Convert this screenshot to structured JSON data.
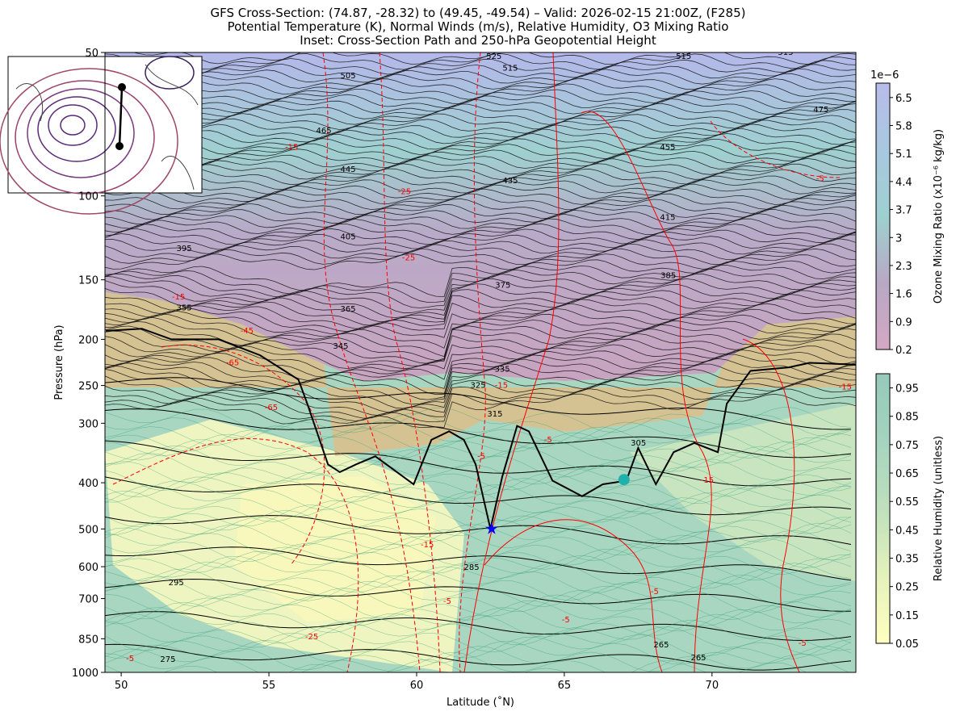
{
  "chart_data": {
    "type": "cross_section",
    "title_lines": [
      "GFS Cross-Section: (74.87, -28.32) to (49.45, -49.54) – Valid: 2026-02-15 21:00Z, (F285)",
      "Potential Temperature (K), Normal Winds (m/s), Relative Humidity, O3 Mixing Ratio",
      "Inset: Cross-Section Path and 250-hPa Geopotential Height"
    ],
    "x_label": "Latitude (˚N)",
    "y_label": "Pressure (hPa)",
    "xlim": [
      49.45,
      74.87
    ],
    "xticks": [
      50,
      55,
      60,
      65,
      70
    ],
    "ylim": [
      1000,
      50
    ],
    "ylog": true,
    "yticks": [
      50,
      100,
      150,
      200,
      250,
      300,
      400,
      500,
      600,
      700,
      850,
      1000
    ],
    "tropopause": {
      "color": "#000000",
      "x": [
        49.48,
        50.7,
        51.7,
        53.3,
        54.7,
        56.0,
        56.3,
        57.0,
        57.4,
        57.95,
        58.6,
        59.9,
        60.5,
        61.1,
        61.6,
        62.0,
        62.5,
        62.9,
        63.4,
        63.8,
        64.6,
        65.6,
        66.3,
        67.1,
        67.5,
        68.1,
        68.7,
        69.4,
        70.2,
        70.5,
        71.3,
        72.6,
        73.3,
        74.87
      ],
      "y": [
        192,
        190,
        200,
        200,
        216,
        243,
        273,
        366,
        380,
        366,
        352,
        403,
        325,
        312,
        325,
        366,
        500,
        388,
        304,
        312,
        396,
        427,
        403,
        396,
        338,
        403,
        345,
        330,
        345,
        273,
        233,
        229,
        224,
        226
      ]
    },
    "markers": [
      {
        "shape": "star",
        "color": "#0000ff",
        "x": 62.54,
        "y": 500
      },
      {
        "shape": "circle",
        "color": "#20b2aa",
        "x": 67.02,
        "y": 394
      }
    ],
    "theta_labels": [
      {
        "value": 525,
        "x": 62.62,
        "y": 51
      },
      {
        "value": 515,
        "x": 63.17,
        "y": 54
      },
      {
        "value": 515,
        "x": 69.04,
        "y": 51
      },
      {
        "value": 515,
        "x": 72.49,
        "y": 50
      },
      {
        "value": 505,
        "x": 57.68,
        "y": 56
      },
      {
        "value": 475,
        "x": 73.69,
        "y": 66
      },
      {
        "value": 465,
        "x": 56.86,
        "y": 73
      },
      {
        "value": 455,
        "x": 68.5,
        "y": 79
      },
      {
        "value": 445,
        "x": 57.68,
        "y": 88
      },
      {
        "value": 435,
        "x": 63.17,
        "y": 93
      },
      {
        "value": 415,
        "x": 68.5,
        "y": 111
      },
      {
        "value": 405,
        "x": 57.68,
        "y": 122
      },
      {
        "value": 395,
        "x": 52.13,
        "y": 129
      },
      {
        "value": 385,
        "x": 68.52,
        "y": 147
      },
      {
        "value": 375,
        "x": 62.92,
        "y": 154
      },
      {
        "value": 365,
        "x": 57.68,
        "y": 173
      },
      {
        "value": 355,
        "x": 52.13,
        "y": 172
      },
      {
        "value": 345,
        "x": 57.43,
        "y": 207
      },
      {
        "value": 335,
        "x": 62.9,
        "y": 231
      },
      {
        "value": 325,
        "x": 62.08,
        "y": 250
      },
      {
        "value": 315,
        "x": 62.65,
        "y": 287
      },
      {
        "value": 305,
        "x": 67.51,
        "y": 330
      },
      {
        "value": 285,
        "x": 61.86,
        "y": 602
      },
      {
        "value": 295,
        "x": 51.86,
        "y": 649
      },
      {
        "value": 275,
        "x": 51.58,
        "y": 940
      },
      {
        "value": 265,
        "x": 68.28,
        "y": 876
      },
      {
        "value": 265,
        "x": 69.54,
        "y": 932
      }
    ],
    "wind_labels": [
      {
        "value": -15,
        "x": 55.77,
        "y": 79
      },
      {
        "value": -25,
        "x": 59.59,
        "y": 98
      },
      {
        "value": -25,
        "x": 59.73,
        "y": 135
      },
      {
        "value": -15,
        "x": 51.94,
        "y": 163
      },
      {
        "value": -45,
        "x": 54.26,
        "y": 192
      },
      {
        "value": -65,
        "x": 53.77,
        "y": 224
      },
      {
        "value": -65,
        "x": 55.08,
        "y": 278
      },
      {
        "value": -15,
        "x": 62.87,
        "y": 250
      },
      {
        "value": -5,
        "x": 64.45,
        "y": 325
      },
      {
        "value": -5,
        "x": 62.19,
        "y": 352
      },
      {
        "value": -15,
        "x": 69.84,
        "y": 395
      },
      {
        "value": -15,
        "x": 60.36,
        "y": 540
      },
      {
        "value": -5,
        "x": 61.04,
        "y": 709
      },
      {
        "value": -5,
        "x": 68.06,
        "y": 677
      },
      {
        "value": -5,
        "x": 65.05,
        "y": 776
      },
      {
        "value": -25,
        "x": 56.45,
        "y": 842
      },
      {
        "value": -5,
        "x": 50.3,
        "y": 936
      },
      {
        "value": -5,
        "x": 73.06,
        "y": 869
      },
      {
        "value": -5,
        "x": 73.66,
        "y": 92
      },
      {
        "value": -15,
        "x": 74.51,
        "y": 252
      }
    ],
    "wind_label_color": "#ff0000",
    "colorbars": [
      {
        "label": "Ozone Mixing Ratio (x10⁻⁶ kg/kg)",
        "offset_label": "1e−6",
        "lim": [
          0.2,
          6.86
        ],
        "ticks": [
          0.2,
          0.9,
          1.6,
          2.3,
          3.0,
          3.7,
          4.4,
          5.1,
          5.8,
          6.5
        ],
        "colors": [
          "#d4a8c4",
          "#b8a8c4",
          "#9ed0d0",
          "#a8c8e0",
          "#b8bcea"
        ]
      },
      {
        "label": "Relative Humidity (unitless)",
        "lim": [
          0.05,
          1.0
        ],
        "ticks": [
          0.05,
          0.15,
          0.25,
          0.35,
          0.45,
          0.55,
          0.65,
          0.75,
          0.85,
          0.95
        ],
        "colors": [
          "#ffffc0",
          "#e4f2bc",
          "#bfe0bc",
          "#a4d4bf",
          "#96c9ba"
        ]
      }
    ]
  }
}
